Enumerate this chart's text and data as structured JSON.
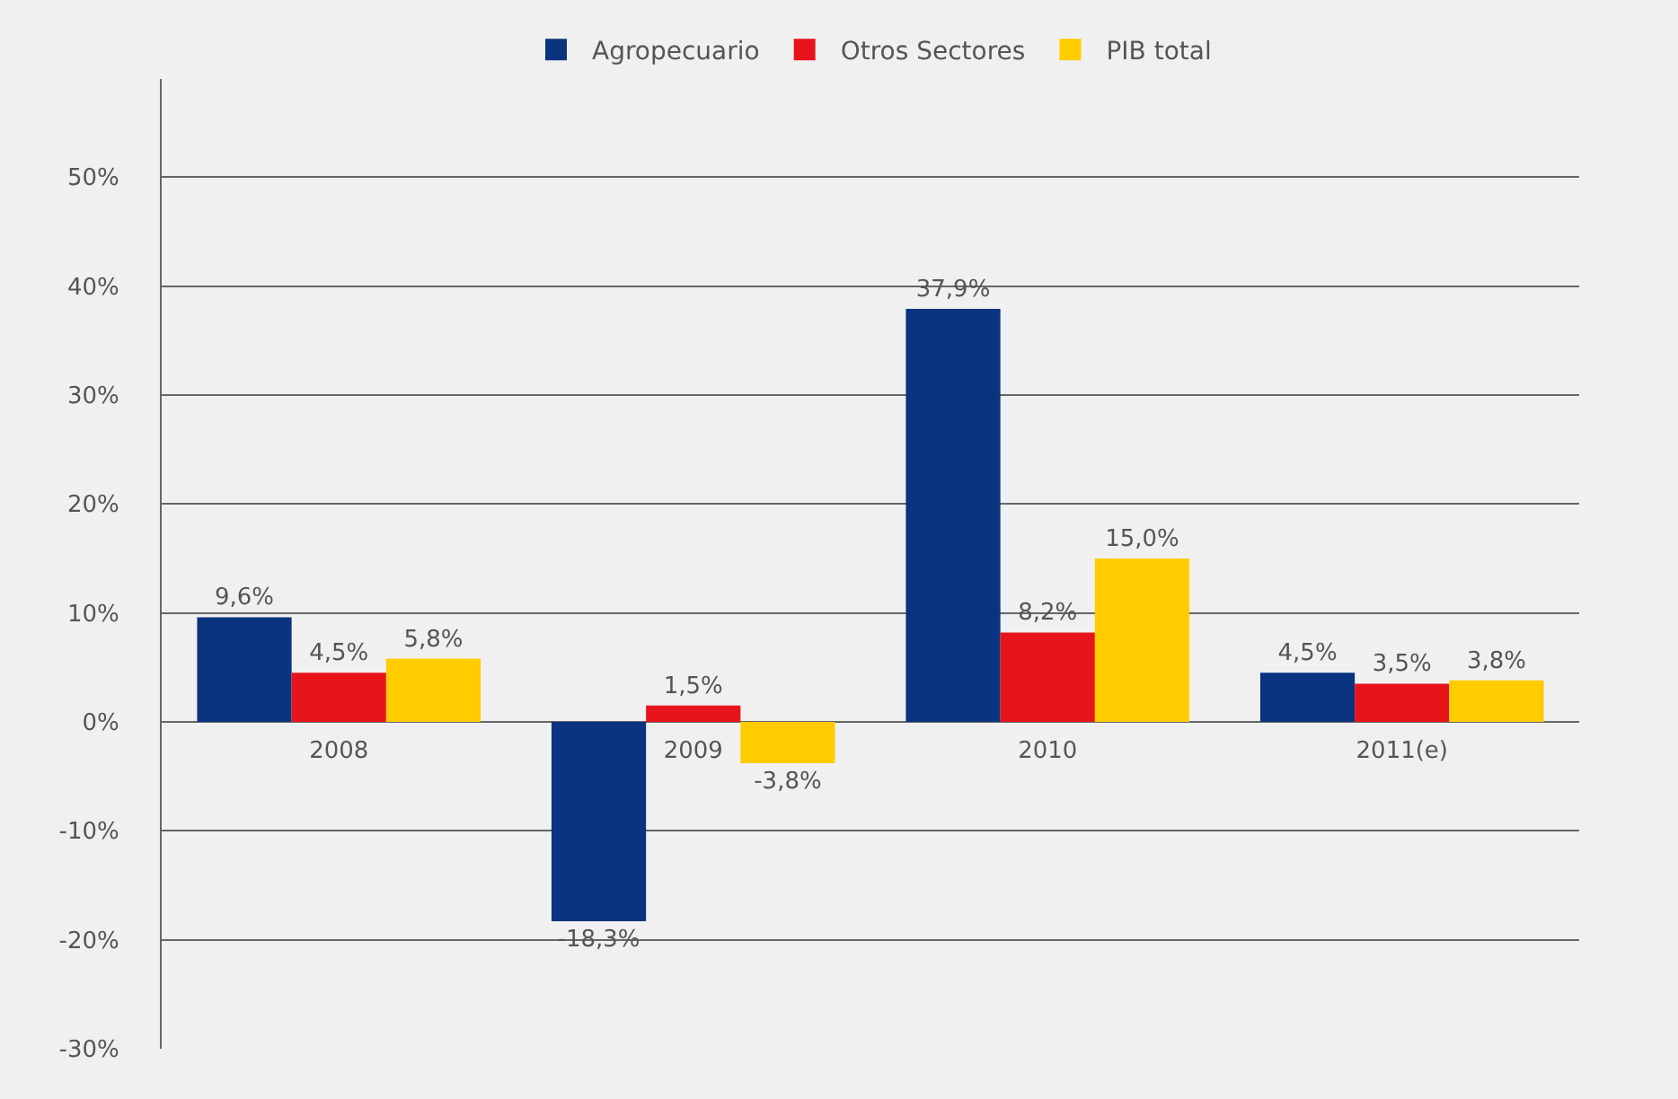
{
  "chart_data": {
    "type": "bar",
    "categories": [
      "2008",
      "2009",
      "2010",
      "2011(e)"
    ],
    "series": [
      {
        "name": "Agropecuario",
        "color": "#0a3380",
        "values": [
          9.6,
          -18.3,
          37.9,
          4.5
        ],
        "value_labels": [
          "9,6%",
          "-18,3%",
          "37,9%",
          "4,5%"
        ]
      },
      {
        "name": "Otros Sectores",
        "color": "#e8141c",
        "values": [
          4.5,
          1.5,
          8.2,
          3.5
        ],
        "value_labels": [
          "4,5%",
          "1,5%",
          "8,2%",
          "3,5%"
        ]
      },
      {
        "name": "PIB total",
        "color": "#ffcc00",
        "values": [
          5.8,
          -3.8,
          15.0,
          3.8
        ],
        "value_labels": [
          "5,8%",
          "-3,8%",
          "15,0%",
          "3,8%"
        ]
      }
    ],
    "ylim": [
      -30,
      59
    ],
    "yticks": [
      {
        "value": -30,
        "label": "-30%"
      },
      {
        "value": -20,
        "label": "-20%"
      },
      {
        "value": -10,
        "label": "-10%"
      },
      {
        "value": 0,
        "label": "0%"
      },
      {
        "value": 10,
        "label": "10%"
      },
      {
        "value": 20,
        "label": "20%"
      },
      {
        "value": 30,
        "label": "30%"
      },
      {
        "value": 40,
        "label": "40%"
      },
      {
        "value": 50,
        "label": "50%"
      }
    ],
    "grid": "y",
    "legend": "top"
  }
}
